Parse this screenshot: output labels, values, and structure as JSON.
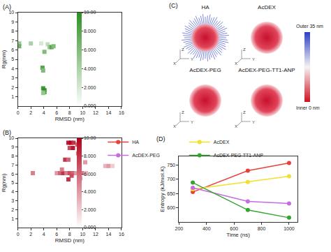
{
  "chart_data": [
    {
      "panel": "(A)",
      "type": "heatmap",
      "x_label": "RMSD (nm)",
      "y_label": "Rg(nm)",
      "xlim": [
        0,
        16
      ],
      "xticks": [
        0,
        2,
        4,
        6,
        8,
        10,
        12,
        14,
        16
      ],
      "ylim": [
        0,
        10
      ],
      "yticks": [
        1,
        2,
        3,
        4,
        5,
        6,
        7,
        8,
        9,
        10
      ],
      "color": "#2e8f22",
      "cells": {
        "x": [
          0.2,
          0.2,
          2.0,
          3.6,
          4.1,
          4.6,
          4.9,
          5.2,
          5.5,
          3.8,
          3.9,
          3.9,
          4.1,
          4.1,
          3.9
        ],
        "y": [
          6.7,
          6.4,
          6.7,
          6.7,
          5.8,
          6.6,
          6.3,
          6.3,
          6.4,
          4.1,
          3.8,
          1.9,
          1.7,
          1.5,
          1.4
        ],
        "values": [
          5,
          7,
          4,
          2,
          6,
          3,
          5,
          8,
          6,
          8,
          6,
          9,
          10,
          8,
          5
        ]
      },
      "colorbar": {
        "range": [
          0,
          10
        ],
        "ticks": [
          {
            "value": 0,
            "label": "0.000"
          },
          {
            "value": 2,
            "label": "2.000"
          },
          {
            "value": 4,
            "label": "4.000"
          },
          {
            "value": 6,
            "label": "6.000"
          },
          {
            "value": 8,
            "label": "8.000"
          },
          {
            "value": 10,
            "label": "10.00"
          }
        ]
      }
    },
    {
      "panel": "(B)",
      "type": "heatmap",
      "x_label": "RMSD (nm)",
      "y_label": "Rg(nm)",
      "xlim": [
        0,
        16
      ],
      "xticks": [
        0,
        2,
        4,
        6,
        8,
        10,
        12,
        14,
        16
      ],
      "ylim": [
        0,
        10
      ],
      "yticks": [
        1,
        2,
        3,
        4,
        5,
        6,
        7,
        8,
        9,
        10
      ],
      "color": "#b3001b",
      "cells": {
        "x": [
          2.3,
          6.0,
          6.5,
          7.0,
          7.5,
          8.0,
          8.5,
          9.0,
          9.5,
          10.0,
          10.5,
          7.8,
          8.2,
          8.6,
          9.2,
          8.0,
          8.5,
          9.3,
          7.3,
          7.8,
          10.4,
          13.5,
          14.0,
          14.6,
          8.3,
          7.8,
          9.6,
          6.8
        ],
        "y": [
          6.1,
          6.1,
          6.1,
          6.1,
          6.1,
          6.1,
          6.1,
          6.1,
          6.1,
          6.1,
          6.1,
          9.5,
          9.5,
          9.5,
          9.3,
          8.9,
          8.9,
          8.3,
          7.6,
          7.6,
          7.3,
          6.9,
          6.9,
          6.9,
          5.8,
          5.4,
          5.5,
          6.5
        ],
        "values": [
          5,
          4,
          6,
          8,
          5,
          7,
          6,
          4,
          7,
          5,
          3,
          9,
          10,
          8,
          6,
          7,
          9,
          5,
          8,
          6,
          4,
          3,
          4,
          2,
          7,
          8,
          6,
          5
        ]
      },
      "colorbar": {
        "range": [
          0,
          10
        ],
        "ticks": [
          {
            "value": 0,
            "label": "0.000"
          },
          {
            "value": 2,
            "label": "2.000"
          },
          {
            "value": 4,
            "label": "4.000"
          },
          {
            "value": 6,
            "label": "6.000"
          },
          {
            "value": 8,
            "label": "8.000"
          },
          {
            "value": 10,
            "label": "10.00"
          }
        ]
      }
    },
    {
      "panel": "(D)",
      "type": "line",
      "x_label": "Time (ns)",
      "y_label": "Entropy (kJ/mol.K)",
      "x": [
        300,
        700,
        1000
      ],
      "xlim": [
        200,
        1060
      ],
      "xticks": [
        200,
        400,
        600,
        800,
        1000
      ],
      "ylim": [
        550,
        780
      ],
      "yticks": [
        600,
        650,
        700,
        750
      ],
      "legend": "top",
      "marker": "circle",
      "series": [
        {
          "name": "HA",
          "color": "#e8413c",
          "values": [
            655,
            730,
            757
          ]
        },
        {
          "name": "AcDEX",
          "color": "#f2df2e",
          "values": [
            665,
            690,
            710
          ]
        },
        {
          "name": "AcDEX-PEG",
          "color": "#c66be0",
          "values": [
            670,
            622,
            615
          ]
        },
        {
          "name": "AcDEX-PEG-TT1-ANP",
          "color": "#35a531",
          "values": [
            688,
            592,
            565
          ]
        }
      ]
    }
  ],
  "diagram": {
    "panel": "(C)",
    "particles": [
      {
        "label": "HA"
      },
      {
        "label": "AcDEX"
      },
      {
        "label": "AcDEX-PEG"
      },
      {
        "label": "AcDEX-PEG-TT1-ANP"
      }
    ],
    "axis_labels": [
      "X",
      "Y",
      "Z"
    ],
    "scale": {
      "top": "Outer 35 nm",
      "bottom": "Inner 0 nm"
    }
  }
}
